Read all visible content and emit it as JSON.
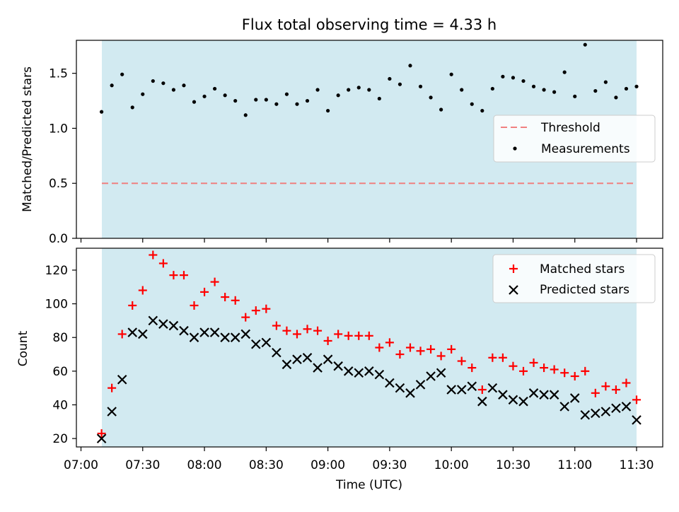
{
  "chart_data": [
    {
      "type": "scatter",
      "title": "Flux total observing time = 4.33 h",
      "xlabel": "",
      "ylabel": "Matched/Predicted stars",
      "xlim": [
        "07:00",
        "11:30"
      ],
      "ylim": [
        0,
        1.8
      ],
      "yticks": [
        0.0,
        0.5,
        1.0,
        1.5
      ],
      "ytick_labels": [
        "0.0",
        "0.5",
        "1.0",
        "1.5"
      ],
      "shaded_span": [
        "07:10",
        "11:30"
      ],
      "shade_color": "#add8e6",
      "legend_position": "center-right",
      "threshold": {
        "name": "Threshold",
        "value": 0.5,
        "color": "#f08080"
      },
      "series": [
        {
          "name": "Measurements",
          "color": "#000000",
          "x": [
            "07:10",
            "07:15",
            "07:20",
            "07:25",
            "07:30",
            "07:35",
            "07:40",
            "07:45",
            "07:50",
            "07:55",
            "08:00",
            "08:05",
            "08:10",
            "08:15",
            "08:20",
            "08:25",
            "08:30",
            "08:35",
            "08:40",
            "08:45",
            "08:50",
            "08:55",
            "09:00",
            "09:05",
            "09:10",
            "09:15",
            "09:20",
            "09:25",
            "09:30",
            "09:35",
            "09:40",
            "09:45",
            "09:50",
            "09:55",
            "10:00",
            "10:05",
            "10:10",
            "10:15",
            "10:20",
            "10:25",
            "10:30",
            "10:35",
            "10:40",
            "10:45",
            "10:50",
            "10:55",
            "11:00",
            "11:05",
            "11:10",
            "11:15",
            "11:20",
            "11:25",
            "11:30"
          ],
          "y": [
            1.15,
            1.39,
            1.49,
            1.19,
            1.31,
            1.43,
            1.41,
            1.35,
            1.39,
            1.24,
            1.29,
            1.36,
            1.3,
            1.25,
            1.12,
            1.26,
            1.26,
            1.22,
            1.31,
            1.22,
            1.25,
            1.35,
            1.16,
            1.3,
            1.35,
            1.37,
            1.35,
            1.27,
            1.45,
            1.4,
            1.57,
            1.38,
            1.28,
            1.17,
            1.49,
            1.35,
            1.22,
            1.16,
            1.36,
            1.47,
            1.46,
            1.43,
            1.38,
            1.35,
            1.33,
            1.51,
            1.29,
            1.76,
            1.34,
            1.42,
            1.28,
            1.36,
            1.38
          ]
        }
      ]
    },
    {
      "type": "scatter",
      "title": "",
      "xlabel": "Time (UTC)",
      "ylabel": "Count",
      "xlim": [
        "07:00",
        "11:30"
      ],
      "xtick_labels": [
        "07:00",
        "07:30",
        "08:00",
        "08:30",
        "09:00",
        "09:30",
        "10:00",
        "10:30",
        "11:00",
        "11:30"
      ],
      "ylim": [
        15,
        133
      ],
      "yticks": [
        20,
        40,
        60,
        80,
        100,
        120
      ],
      "ytick_labels": [
        "20",
        "40",
        "60",
        "80",
        "100",
        "120"
      ],
      "shaded_span": [
        "07:10",
        "11:30"
      ],
      "legend_position": "top-right",
      "series": [
        {
          "name": "Matched stars",
          "marker": "+",
          "color": "#ff0000",
          "x": [
            "07:10",
            "07:15",
            "07:20",
            "07:25",
            "07:30",
            "07:35",
            "07:40",
            "07:45",
            "07:50",
            "07:55",
            "08:00",
            "08:05",
            "08:10",
            "08:15",
            "08:20",
            "08:25",
            "08:30",
            "08:35",
            "08:40",
            "08:45",
            "08:50",
            "08:55",
            "09:00",
            "09:05",
            "09:10",
            "09:15",
            "09:20",
            "09:25",
            "09:30",
            "09:35",
            "09:40",
            "09:45",
            "09:50",
            "09:55",
            "10:00",
            "10:05",
            "10:10",
            "10:15",
            "10:20",
            "10:25",
            "10:30",
            "10:35",
            "10:40",
            "10:45",
            "10:50",
            "10:55",
            "11:00",
            "11:05",
            "11:10",
            "11:15",
            "11:20",
            "11:25",
            "11:30"
          ],
          "y": [
            23,
            50,
            82,
            99,
            108,
            129,
            124,
            117,
            117,
            99,
            107,
            113,
            104,
            102,
            92,
            96,
            97,
            87,
            84,
            82,
            85,
            84,
            78,
            82,
            81,
            81,
            81,
            74,
            77,
            70,
            74,
            72,
            73,
            69,
            73,
            66,
            62,
            49,
            68,
            68,
            63,
            60,
            65,
            62,
            61,
            59,
            57,
            60,
            47,
            51,
            49,
            53,
            43
          ]
        },
        {
          "name": "Predicted stars",
          "marker": "x",
          "color": "#000000",
          "x": [
            "07:10",
            "07:15",
            "07:20",
            "07:25",
            "07:30",
            "07:35",
            "07:40",
            "07:45",
            "07:50",
            "07:55",
            "08:00",
            "08:05",
            "08:10",
            "08:15",
            "08:20",
            "08:25",
            "08:30",
            "08:35",
            "08:40",
            "08:45",
            "08:50",
            "08:55",
            "09:00",
            "09:05",
            "09:10",
            "09:15",
            "09:20",
            "09:25",
            "09:30",
            "09:35",
            "09:40",
            "09:45",
            "09:50",
            "09:55",
            "10:00",
            "10:05",
            "10:10",
            "10:15",
            "10:20",
            "10:25",
            "10:30",
            "10:35",
            "10:40",
            "10:45",
            "10:50",
            "10:55",
            "11:00",
            "11:05",
            "11:10",
            "11:15",
            "11:20",
            "11:25",
            "11:30"
          ],
          "y": [
            20,
            36,
            55,
            83,
            82,
            90,
            88,
            87,
            84,
            80,
            83,
            83,
            80,
            80,
            82,
            76,
            77,
            71,
            64,
            67,
            68,
            62,
            67,
            63,
            60,
            59,
            60,
            58,
            53,
            50,
            47,
            52,
            57,
            59,
            49,
            49,
            51,
            42,
            50,
            46,
            43,
            42,
            47,
            46,
            46,
            39,
            44,
            34,
            35,
            36,
            38,
            39,
            31
          ]
        }
      ]
    }
  ]
}
